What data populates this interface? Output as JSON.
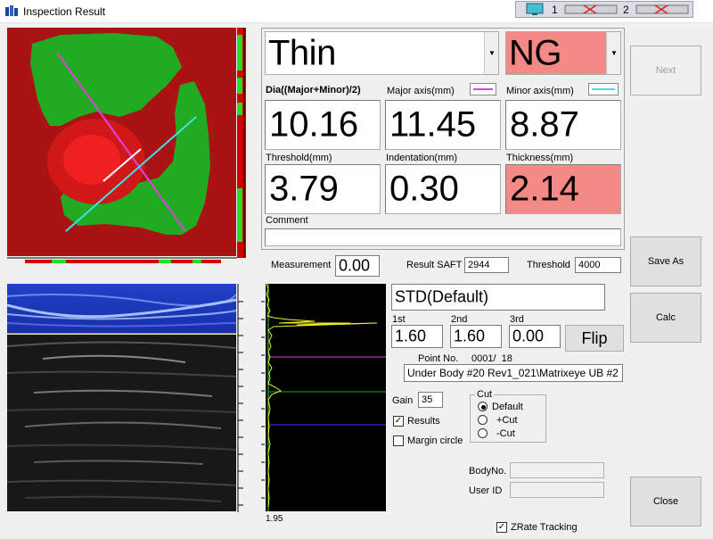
{
  "window": {
    "title": "Inspection Result"
  },
  "mini_toolbar": {
    "item1": "1",
    "item2": "2"
  },
  "result": {
    "category": "Thin",
    "judgement": "NG"
  },
  "measurements": {
    "dia_label": "Dia((Major+Minor)/2)",
    "dia_value": "10.16",
    "major_label": "Major axis(mm)",
    "major_value": "11.45",
    "minor_label": "Minor axis(mm)",
    "minor_value": "8.87",
    "threshold_label": "Threshold(mm)",
    "threshold_value": "3.79",
    "indentation_label": "Indentation(mm)",
    "indentation_value": "0.30",
    "thickness_label": "Thickness(mm)",
    "thickness_value": "2.14",
    "comment_label": "Comment",
    "comment_value": ""
  },
  "stats": {
    "measurement_label": "Measurement",
    "measurement_value": "0.00",
    "saft_label": "Result SAFT",
    "saft_value": "2944",
    "threshold_label": "Threshold",
    "threshold_value": "4000"
  },
  "profile": {
    "name": "STD(Default)"
  },
  "echoes": {
    "first_label": "1st",
    "first_value": "1.60",
    "second_label": "2nd",
    "second_value": "1.60",
    "third_label": "3rd",
    "third_value": "0.00",
    "flip_label": "Flip"
  },
  "point": {
    "label": "Point No.",
    "value": "0001/  18",
    "path": "Under Body #20 Rev1_021\\Matrixeye UB #2"
  },
  "gain": {
    "label": "Gain",
    "value": "35"
  },
  "options": {
    "results_label": "Results",
    "results_checked": true,
    "margin_label": "Margin circle",
    "margin_checked": false
  },
  "cut": {
    "title": "Cut",
    "options": [
      "Default",
      "+Cut",
      "-Cut"
    ],
    "selected": "Default"
  },
  "ids": {
    "body_label": "BodyNo.",
    "body_value": "",
    "user_label": "User ID",
    "user_value": ""
  },
  "zrate": {
    "label": "ZRate Tracking",
    "checked": true
  },
  "signal": {
    "scale_label": "1.95"
  },
  "buttons": {
    "next": "Next",
    "save_as": "Save As",
    "calc": "Calc",
    "close": "Close"
  },
  "colors": {
    "ng_red": "#f48a86",
    "major_axis_line": "#e040e0",
    "minor_axis_line": "#40e0f0",
    "signal_yellow": "#f0f020"
  }
}
